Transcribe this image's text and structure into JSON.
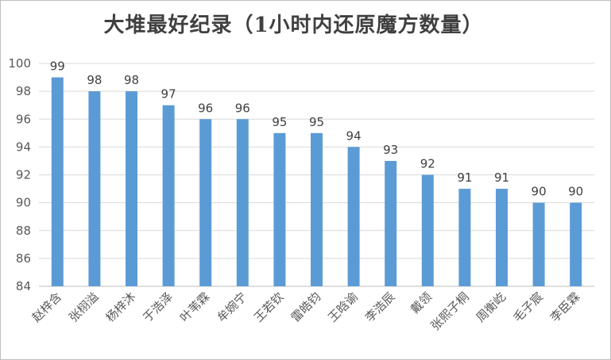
{
  "chart_data": {
    "type": "bar",
    "title": "大堆最好纪录（1小时内还原魔方数量）",
    "xlabel": "",
    "ylabel": "",
    "ylim": [
      84,
      100
    ],
    "yticks": [
      84,
      86,
      88,
      90,
      92,
      94,
      96,
      98,
      100
    ],
    "grid": true,
    "legend": "none",
    "categories": [
      "赵梓含",
      "张栩溢",
      "杨梓沐",
      "于浩泽",
      "叶苇霖",
      "牟婉宁",
      "王若钦",
      "雷皓钧",
      "王晗谕",
      "李浩辰",
      "戴领",
      "张熙子桐",
      "周衡屹",
      "毛子宸",
      "李臣霖"
    ],
    "values": [
      99,
      98,
      98,
      97,
      96,
      96,
      95,
      95,
      94,
      93,
      92,
      91,
      91,
      90,
      90
    ],
    "data_labels": true,
    "colors": {
      "bar": "#5b9bd5",
      "grid": "#d9d9d9",
      "text": "#595959",
      "axis": "#bfbfbf"
    }
  }
}
